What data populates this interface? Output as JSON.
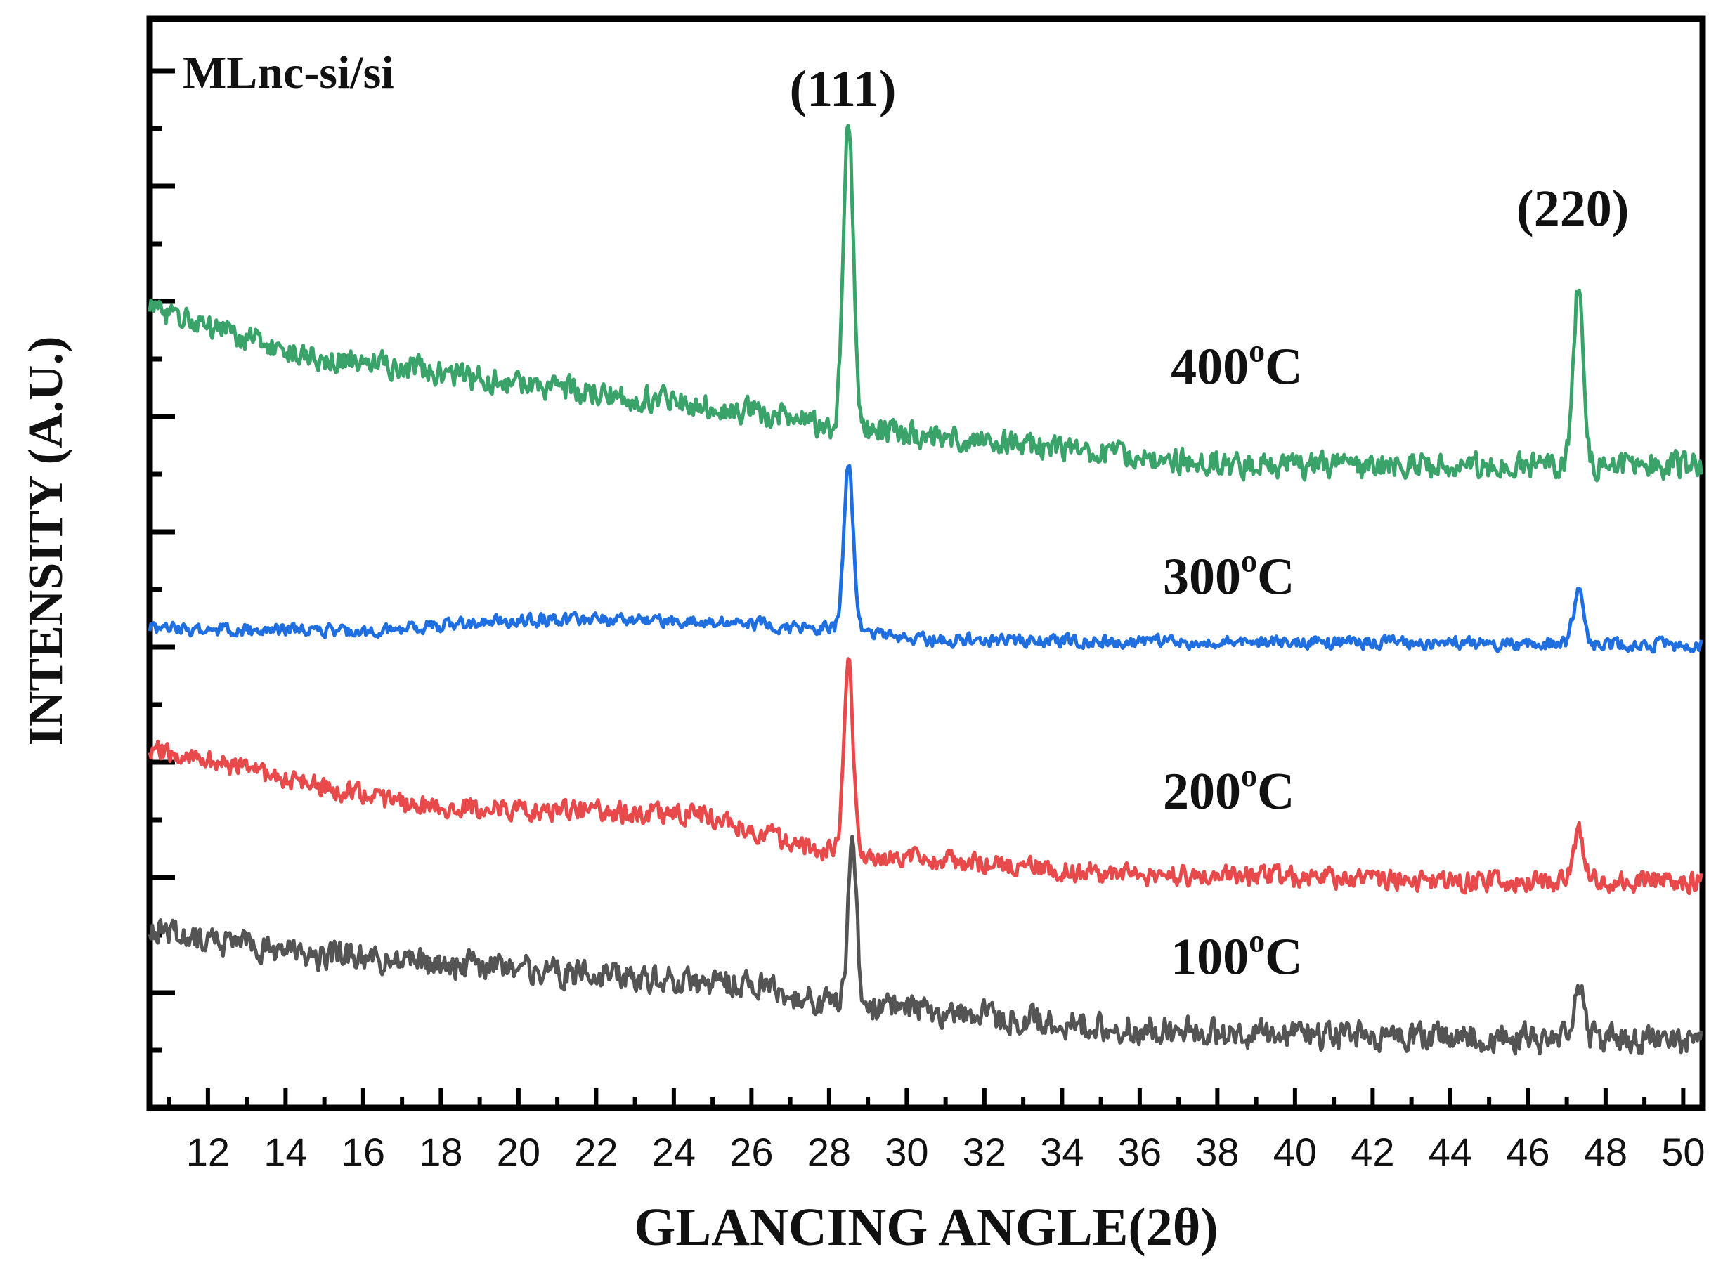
{
  "chart_data": {
    "type": "line",
    "title": "",
    "sample_label": "MLnc-si/si",
    "xlabel": "GLANCING ANGLE(2θ)",
    "ylabel": "INTENSITY (A.U.)",
    "xlim": [
      10.5,
      50.5
    ],
    "ylim": [
      0,
      1
    ],
    "x_ticks": [
      12,
      14,
      16,
      18,
      20,
      22,
      24,
      26,
      28,
      30,
      32,
      34,
      36,
      38,
      40,
      42,
      44,
      46,
      48,
      50
    ],
    "y_ticks_shown": false,
    "peak_annotations": [
      {
        "text": "(111)",
        "x": 28.5,
        "y": 0.92
      },
      {
        "text": "(220)",
        "x": 47.3,
        "y": 0.81
      }
    ],
    "series": [
      {
        "name": "400°C",
        "label_main": "400",
        "label_sup": "o",
        "label_unit": "C",
        "color": "#3aa36a",
        "label_x": 36.8,
        "label_y": 0.665,
        "seed": 4,
        "noise": 0.016,
        "baseline": [
          [
            10.5,
            0.735
          ],
          [
            14,
            0.695
          ],
          [
            20,
            0.665
          ],
          [
            26,
            0.64
          ],
          [
            28,
            0.625
          ],
          [
            30,
            0.62
          ],
          [
            34,
            0.605
          ],
          [
            38,
            0.59
          ],
          [
            44,
            0.59
          ],
          [
            50.5,
            0.59
          ]
        ],
        "peaks": [
          [
            28.5,
            0.28,
            0.13
          ],
          [
            47.3,
            0.165,
            0.13
          ]
        ]
      },
      {
        "name": "300°C",
        "label_main": "300",
        "label_sup": "o",
        "label_unit": "C",
        "color": "#1f6fe0",
        "label_x": 36.6,
        "label_y": 0.472,
        "seed": 3,
        "noise": 0.008,
        "baseline": [
          [
            10.5,
            0.44
          ],
          [
            16,
            0.438
          ],
          [
            20,
            0.448
          ],
          [
            24,
            0.448
          ],
          [
            28,
            0.44
          ],
          [
            30,
            0.43
          ],
          [
            38,
            0.428
          ],
          [
            50.5,
            0.425
          ]
        ],
        "peaks": [
          [
            28.5,
            0.155,
            0.12
          ],
          [
            47.3,
            0.048,
            0.13
          ]
        ]
      },
      {
        "name": "200°C",
        "label_main": "200",
        "label_sup": "o",
        "label_unit": "C",
        "color": "#e84a4c",
        "label_x": 36.6,
        "label_y": 0.275,
        "seed": 2,
        "noise": 0.013,
        "baseline": [
          [
            10.5,
            0.33
          ],
          [
            14,
            0.302
          ],
          [
            17,
            0.278
          ],
          [
            22,
            0.272
          ],
          [
            25,
            0.268
          ],
          [
            27,
            0.245
          ],
          [
            28,
            0.235
          ],
          [
            31,
            0.228
          ],
          [
            35,
            0.215
          ],
          [
            40,
            0.212
          ],
          [
            44,
            0.208
          ],
          [
            50.5,
            0.208
          ]
        ],
        "peaks": [
          [
            28.5,
            0.17,
            0.12
          ],
          [
            47.3,
            0.045,
            0.13
          ]
        ]
      },
      {
        "name": "100°C",
        "label_main": "100",
        "label_sup": "o",
        "label_unit": "C",
        "color": "#545454",
        "label_x": 36.8,
        "label_y": 0.123,
        "seed": 1,
        "noise": 0.018,
        "baseline": [
          [
            10.5,
            0.165
          ],
          [
            14,
            0.142
          ],
          [
            20,
            0.128
          ],
          [
            26,
            0.112
          ],
          [
            28,
            0.095
          ],
          [
            30,
            0.09
          ],
          [
            34,
            0.078
          ],
          [
            38,
            0.068
          ],
          [
            44,
            0.065
          ],
          [
            50.5,
            0.062
          ]
        ],
        "peaks": [
          [
            28.6,
            0.155,
            0.11
          ],
          [
            47.3,
            0.05,
            0.13
          ]
        ]
      }
    ]
  }
}
